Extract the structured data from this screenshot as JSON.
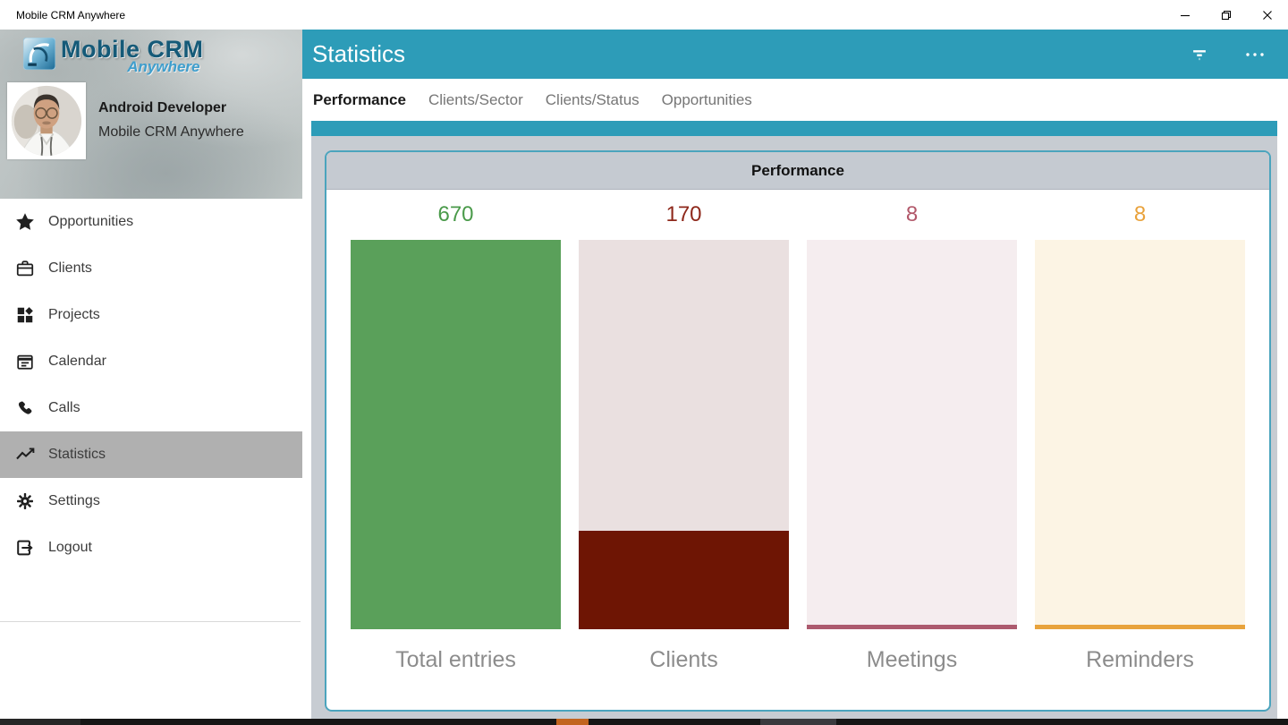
{
  "window": {
    "title": "Mobile CRM Anywhere"
  },
  "sidebar": {
    "logo": {
      "title": "Mobile CRM",
      "subtitle": "Anywhere"
    },
    "profile": {
      "name": "Android Developer",
      "org": "Mobile CRM Anywhere"
    },
    "items": [
      {
        "label": "Opportunities",
        "icon": "star-icon",
        "selected": false
      },
      {
        "label": "Clients",
        "icon": "briefcase-icon",
        "selected": false
      },
      {
        "label": "Projects",
        "icon": "grid-icon",
        "selected": false
      },
      {
        "label": "Calendar",
        "icon": "calendar-icon",
        "selected": false
      },
      {
        "label": "Calls",
        "icon": "phone-icon",
        "selected": false
      },
      {
        "label": "Statistics",
        "icon": "line-chart-icon",
        "selected": true
      },
      {
        "label": "Settings",
        "icon": "gear-icon",
        "selected": false
      },
      {
        "label": "Logout",
        "icon": "logout-icon",
        "selected": false
      }
    ]
  },
  "header": {
    "title": "Statistics",
    "icons": [
      "filter-icon",
      "more-icon"
    ]
  },
  "tabs": [
    {
      "label": "Performance",
      "active": true
    },
    {
      "label": "Clients/Sector",
      "active": false
    },
    {
      "label": "Clients/Status",
      "active": false
    },
    {
      "label": "Opportunities",
      "active": false
    }
  ],
  "colors": {
    "accent": "#2d9cb8",
    "panel": "#c7ccd2",
    "card_border": "#4ba4bd",
    "card_header_bg": "#c5cad1",
    "selected_item_bg": "#b0b0b0"
  },
  "chart_data": {
    "type": "bar",
    "title": "Performance",
    "max": 670,
    "ylim": [
      0,
      670
    ],
    "categories": [
      "Total entries",
      "Clients",
      "Meetings",
      "Reminders"
    ],
    "values": [
      670,
      170,
      8,
      8
    ],
    "columns": [
      {
        "label": "Total entries",
        "value": 670,
        "value_color": "#4a9a4a",
        "fill_color": "#5aa05a",
        "track_color": "#eef5ee"
      },
      {
        "label": "Clients",
        "value": 170,
        "value_color": "#8e281b",
        "fill_color": "#6e1504",
        "track_color": "#eae0e0"
      },
      {
        "label": "Meetings",
        "value": 8,
        "value_color": "#b2586a",
        "fill_color": "#ac5a6e",
        "track_color": "#f5edef"
      },
      {
        "label": "Reminders",
        "value": 8,
        "value_color": "#e9a23b",
        "fill_color": "#e8a33c",
        "track_color": "#fcf4e4"
      }
    ]
  }
}
